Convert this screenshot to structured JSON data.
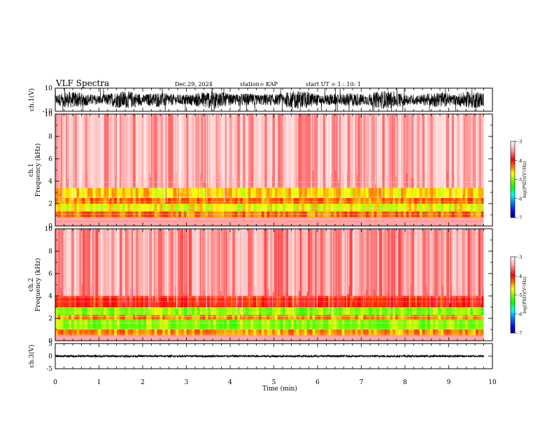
{
  "header": {
    "title": "VLF Spectra",
    "date": "Dec.29, 2024",
    "station": "station= KAP",
    "start_ut": "start  UT  =   1 : 10: 1"
  },
  "chart_data": [
    {
      "type": "line",
      "id": "ch1-waveform",
      "ylabel": "ch.1(V)",
      "ylim": [
        -10,
        10
      ],
      "yticks": [
        10,
        -10
      ],
      "x_range": [
        0,
        9.8
      ],
      "description_values": {
        "typical_min": -8,
        "typical_max": 8
      }
    },
    {
      "type": "heatmap",
      "id": "ch1-spectrogram",
      "ylabel": [
        "ch.1",
        "Frequency (kHz)"
      ],
      "ylim": [
        0,
        10
      ],
      "yticks": [
        0,
        2,
        4,
        6,
        8,
        10
      ],
      "xlim": [
        0,
        9.8
      ],
      "bands": [
        {
          "fmin": 0.8,
          "fmax": 1.3,
          "level": -4.3
        },
        {
          "fmin": 1.3,
          "fmax": 2.0,
          "level": -4.7
        },
        {
          "fmin": 2.0,
          "fmax": 2.5,
          "level": -4.3
        },
        {
          "fmin": 2.5,
          "fmax": 3.4,
          "level": -4.6
        },
        {
          "fmin": 3.4,
          "fmax": 10.0,
          "level": -3.4
        }
      ],
      "colorbar": {
        "label": "log(PSD)(V²/Hz)",
        "range": [
          -7,
          -3
        ],
        "ticks": [
          -3,
          -4,
          -5,
          -6,
          -7
        ]
      }
    },
    {
      "type": "heatmap",
      "id": "ch2-spectrogram",
      "ylabel": [
        "ch.2",
        "Frequency (kHz)"
      ],
      "ylim": [
        0,
        10
      ],
      "yticks": [
        0,
        2,
        4,
        6,
        8,
        10
      ],
      "xlim": [
        0,
        9.8
      ],
      "bands": [
        {
          "fmin": 0.5,
          "fmax": 1.0,
          "level": -4.4
        },
        {
          "fmin": 1.0,
          "fmax": 1.9,
          "level": -5.0
        },
        {
          "fmin": 1.9,
          "fmax": 2.3,
          "level": -4.4
        },
        {
          "fmin": 2.3,
          "fmax": 3.0,
          "level": -5.0
        },
        {
          "fmin": 3.0,
          "fmax": 4.0,
          "level": -4.0
        },
        {
          "fmin": 4.0,
          "fmax": 10.0,
          "level": -3.5
        }
      ],
      "colorbar": {
        "label": "log(PSD)(V²/Hz)",
        "range": [
          -7,
          -3
        ],
        "ticks": [
          -3,
          -4,
          -5,
          -6,
          -7
        ]
      }
    },
    {
      "type": "line",
      "id": "ch3-waveform",
      "ylabel": "ch.3(V)",
      "ylim": [
        -5,
        5
      ],
      "yticks": [
        5,
        0,
        -5
      ],
      "x_range": [
        0,
        9.8
      ],
      "description_values": {
        "typical_min": -0.4,
        "typical_max": 0.4,
        "offset": 0
      }
    }
  ],
  "time_axis": {
    "label": "Time (min)",
    "ticks": [
      0,
      1,
      2,
      3,
      4,
      5,
      6,
      7,
      8,
      9,
      10
    ],
    "xlim": [
      0,
      10
    ]
  },
  "colorbar_colors": [
    "#000080",
    "#0000ff",
    "#0080ff",
    "#00ffff",
    "#00ff00",
    "#80ff00",
    "#ffff00",
    "#ff8000",
    "#ff0000",
    "#ffb0b0",
    "#ffffff"
  ]
}
